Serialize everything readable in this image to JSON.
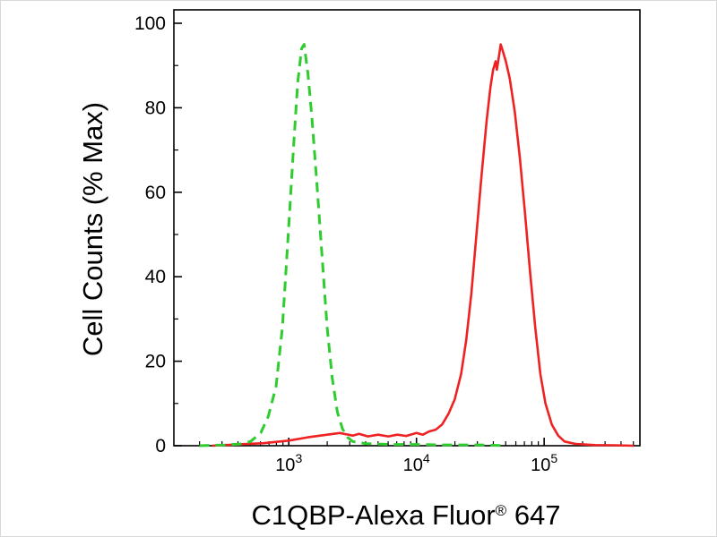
{
  "figure": {
    "xlabel_main": "C1QBP-Alexa Fluor",
    "xlabel_reg": "®",
    "xlabel_suffix": " 647"
  },
  "chart_data": {
    "type": "line",
    "title": "",
    "xlabel": "C1QBP-Alexa Fluor® 647",
    "ylabel": "Cell Counts (% Max)",
    "x_scale": "log",
    "x_range_log10": [
      2.1,
      5.75
    ],
    "ylim": [
      0,
      100
    ],
    "y_ticks": [
      0,
      20,
      40,
      60,
      80,
      100
    ],
    "y_minor_ticks": [
      10,
      30,
      50,
      70,
      90
    ],
    "x_major_ticks_log10": [
      3,
      4,
      5
    ],
    "x_tick_labels": [
      "10^3",
      "10^4",
      "10^5"
    ],
    "grid": false,
    "legend": "none",
    "colors": {
      "green": "#2ecc2e",
      "red": "#ee2222",
      "axis": "#000000"
    },
    "series": [
      {
        "name": "green dashed curve (control)",
        "color": "#2ecc2e",
        "dash": true,
        "peak_x_log10": 3.12,
        "peak_y": 95,
        "points": [
          [
            2.3,
            0
          ],
          [
            2.5,
            0.2
          ],
          [
            2.62,
            0.4
          ],
          [
            2.7,
            1
          ],
          [
            2.78,
            3
          ],
          [
            2.84,
            7
          ],
          [
            2.9,
            14
          ],
          [
            2.95,
            28
          ],
          [
            3.0,
            52
          ],
          [
            3.04,
            72
          ],
          [
            3.07,
            86
          ],
          [
            3.1,
            94
          ],
          [
            3.12,
            95
          ],
          [
            3.15,
            88
          ],
          [
            3.18,
            78
          ],
          [
            3.22,
            62
          ],
          [
            3.26,
            45
          ],
          [
            3.3,
            28
          ],
          [
            3.34,
            16
          ],
          [
            3.38,
            8
          ],
          [
            3.42,
            4
          ],
          [
            3.46,
            2
          ],
          [
            3.5,
            1
          ],
          [
            3.6,
            0.5
          ],
          [
            3.8,
            0.3
          ],
          [
            4.0,
            0.3
          ],
          [
            4.2,
            0.2
          ],
          [
            4.5,
            0.2
          ],
          [
            4.7,
            0
          ]
        ]
      },
      {
        "name": "red solid curve (stained sample)",
        "color": "#ee2222",
        "dash": false,
        "peak_x_log10": 4.66,
        "peak_y": 95,
        "points": [
          [
            2.4,
            0
          ],
          [
            2.6,
            0.3
          ],
          [
            2.8,
            0.6
          ],
          [
            3.0,
            1.2
          ],
          [
            3.15,
            2.0
          ],
          [
            3.3,
            2.6
          ],
          [
            3.4,
            3.0
          ],
          [
            3.5,
            2.4
          ],
          [
            3.55,
            2.8
          ],
          [
            3.62,
            2.2
          ],
          [
            3.7,
            2.6
          ],
          [
            3.78,
            2.2
          ],
          [
            3.85,
            2.6
          ],
          [
            3.92,
            2.3
          ],
          [
            4.0,
            3.0
          ],
          [
            4.05,
            2.6
          ],
          [
            4.1,
            3.4
          ],
          [
            4.15,
            3.8
          ],
          [
            4.2,
            5.0
          ],
          [
            4.25,
            7.5
          ],
          [
            4.3,
            11
          ],
          [
            4.35,
            17
          ],
          [
            4.39,
            25
          ],
          [
            4.43,
            36
          ],
          [
            4.47,
            50
          ],
          [
            4.51,
            64
          ],
          [
            4.55,
            77
          ],
          [
            4.58,
            85
          ],
          [
            4.6,
            89
          ],
          [
            4.62,
            91
          ],
          [
            4.63,
            89
          ],
          [
            4.65,
            93
          ],
          [
            4.66,
            95
          ],
          [
            4.68,
            93
          ],
          [
            4.7,
            91
          ],
          [
            4.73,
            87
          ],
          [
            4.77,
            79
          ],
          [
            4.81,
            68
          ],
          [
            4.85,
            55
          ],
          [
            4.89,
            41
          ],
          [
            4.93,
            28
          ],
          [
            4.97,
            17
          ],
          [
            5.01,
            10
          ],
          [
            5.06,
            5
          ],
          [
            5.11,
            2.4
          ],
          [
            5.16,
            1
          ],
          [
            5.25,
            0.4
          ],
          [
            5.4,
            0.15
          ],
          [
            5.55,
            0.1
          ],
          [
            5.7,
            0
          ]
        ]
      }
    ]
  }
}
